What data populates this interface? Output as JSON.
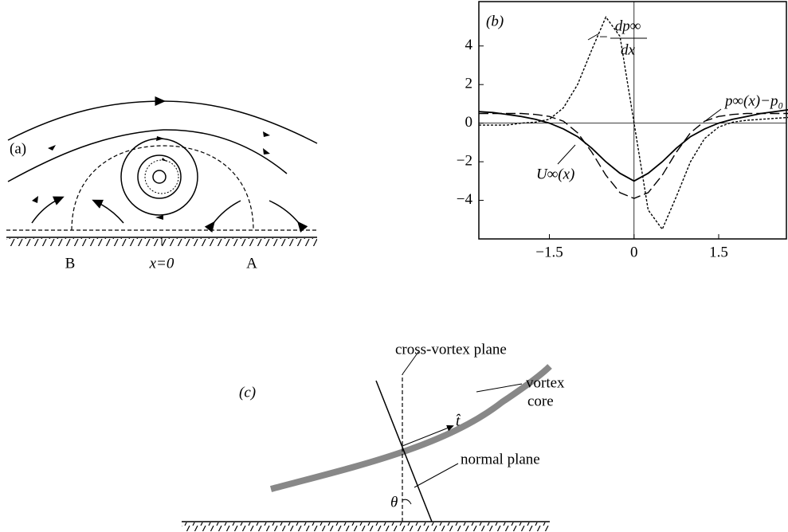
{
  "panel_a": {
    "label": "(a)",
    "wall_labels": [
      "B",
      "x=0",
      "A"
    ]
  },
  "chart_data": {
    "type": "line",
    "label": "(b)",
    "x": [
      -2.75,
      -2.5,
      -2.25,
      -2,
      -1.75,
      -1.5,
      -1.25,
      -1,
      -0.75,
      -0.5,
      -0.25,
      0,
      0.25,
      0.5,
      0.75,
      1,
      1.25,
      1.5,
      1.75,
      2,
      2.25,
      2.5,
      2.75
    ],
    "series": [
      {
        "color": "#000000",
        "dash": "solid",
        "values": [
          0.6,
          0.55,
          0.45,
          0.35,
          0.2,
          0,
          -0.3,
          -0.7,
          -1.3,
          -2.0,
          -2.6,
          -3.0,
          -2.6,
          -2.0,
          -1.3,
          -0.7,
          -0.3,
          0,
          0.2,
          0.35,
          0.5,
          0.6,
          0.7
        ]
      },
      {
        "color": "#000000",
        "dash": "dashed",
        "values": [
          0.5,
          0.5,
          0.5,
          0.5,
          0.45,
          0.35,
          0.1,
          -0.5,
          -1.5,
          -2.7,
          -3.6,
          -3.9,
          -3.6,
          -2.7,
          -1.5,
          -0.5,
          0.1,
          0.35,
          0.45,
          0.5,
          0.5,
          0.5,
          0.5
        ]
      },
      {
        "color": "#000000",
        "dash": "dotted",
        "values": [
          -0.1,
          -0.1,
          -0.1,
          0,
          0.05,
          0.2,
          0.8,
          2.0,
          3.8,
          5.5,
          4.5,
          0,
          -4.5,
          -5.5,
          -3.8,
          -2.0,
          -0.8,
          -0.2,
          0.05,
          0.15,
          0.2,
          0.25,
          0.3
        ]
      }
    ],
    "xlim": [
      -2.75,
      2.7
    ],
    "ylim": [
      -6,
      6.3
    ],
    "xticks": [
      {
        "value": -1.5,
        "label": "−1.5"
      },
      0,
      1.5
    ],
    "yticks": [
      {
        "value": -4,
        "label": "−4"
      },
      {
        "value": -2,
        "label": "−2"
      },
      0,
      2,
      4
    ],
    "annotations": {
      "u": "U∞(x)",
      "p": "p∞(x)−p₀",
      "dp_sign": "−",
      "dp_num": "dp∞",
      "dp_den": "dx"
    }
  },
  "panel_c": {
    "label": "(c)",
    "cross_plane": "cross-vortex plane",
    "core_1": "vortex",
    "core_2": "core",
    "tangent": "t̂",
    "normal_plane": "normal plane",
    "angle": "θ"
  }
}
